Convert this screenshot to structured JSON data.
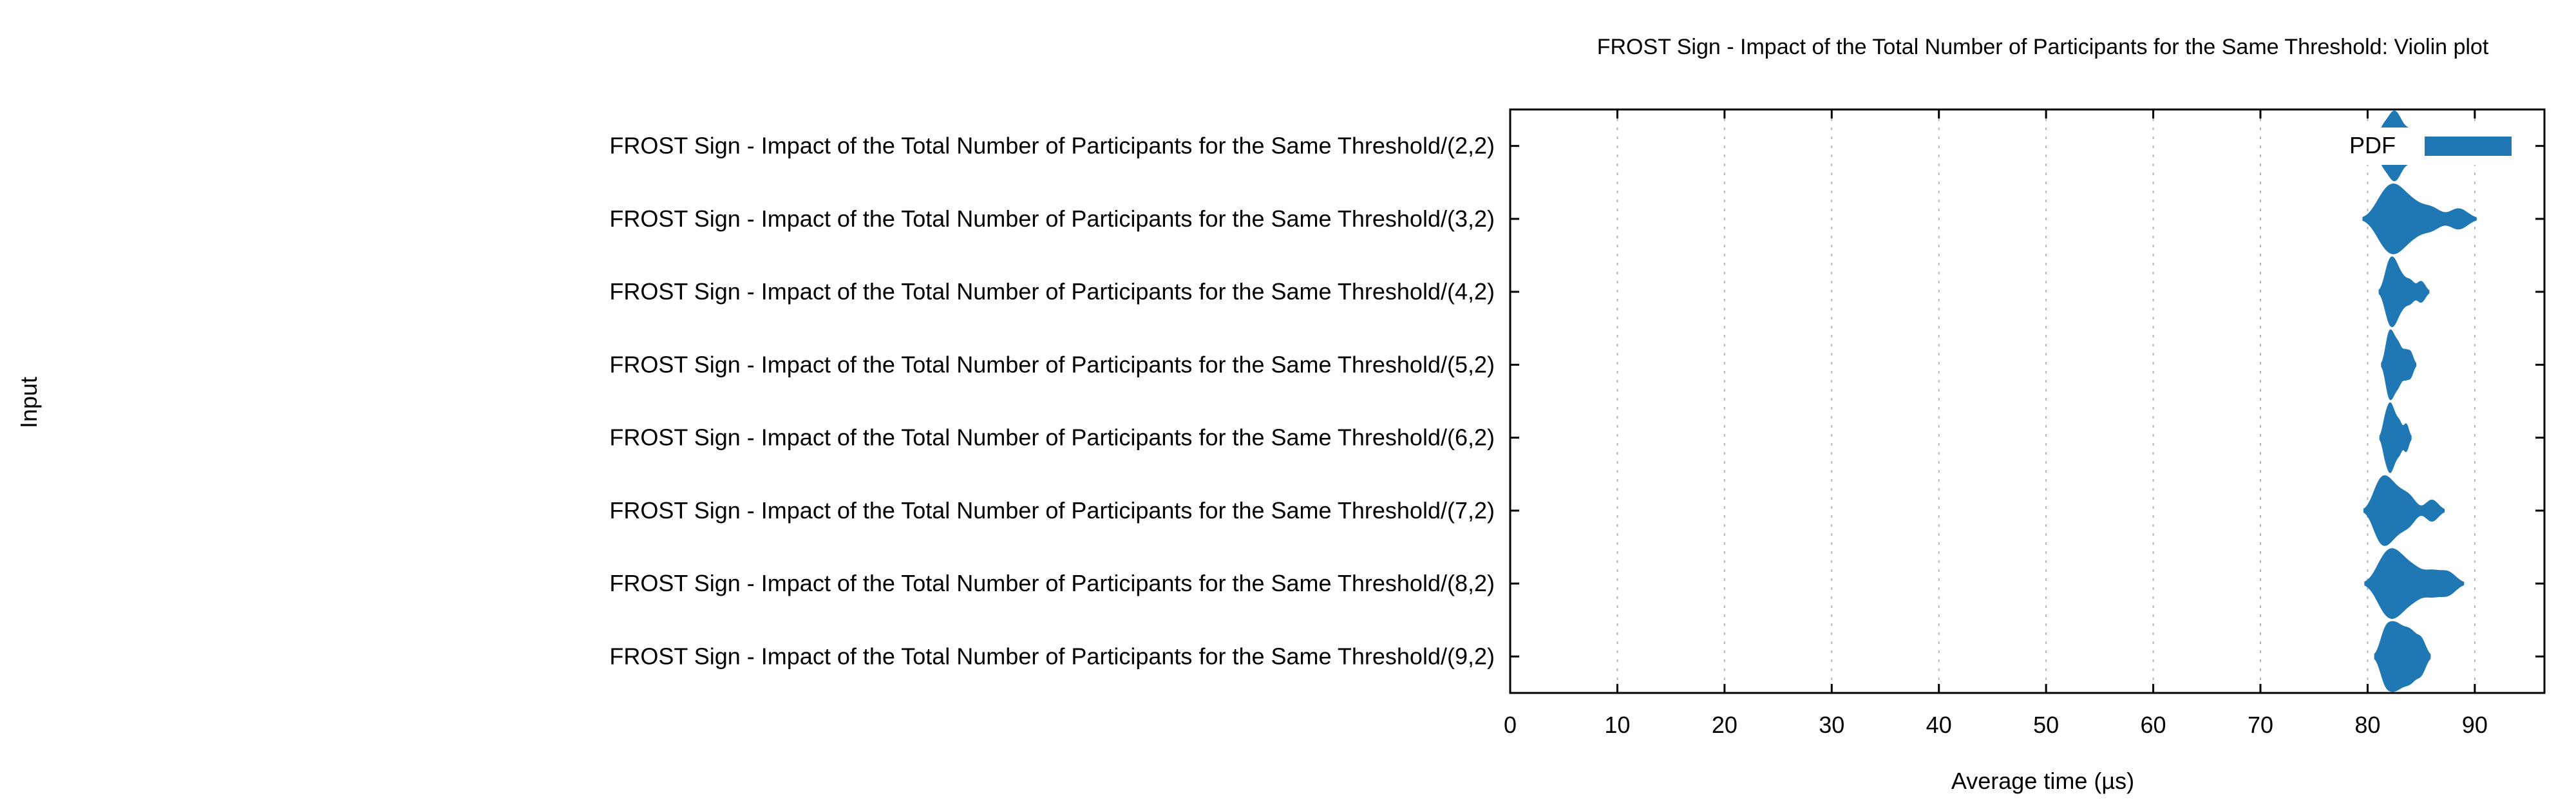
{
  "chart_data": {
    "type": "violin",
    "title": "FROST Sign - Impact of the Total Number of Participants for the Same Threshold: Violin plot",
    "xlabel": "Average time (µs)",
    "ylabel": "Input",
    "xlim": [
      0,
      96.5
    ],
    "x_ticks": [
      "0",
      "10",
      "20",
      "30",
      "40",
      "50",
      "60",
      "70",
      "80",
      "90"
    ],
    "grid": "vertical dotted",
    "legend_position": "top-right",
    "legend": [
      "PDF"
    ],
    "color": "#1f78b4",
    "categories": [
      "FROST Sign - Impact of the Total Number of Participants for the Same Threshold/(2,2)",
      "FROST Sign - Impact of the Total Number of Participants for the Same Threshold/(3,2)",
      "FROST Sign - Impact of the Total Number of Participants for the Same Threshold/(4,2)",
      "FROST Sign - Impact of the Total Number of Participants for the Same Threshold/(5,2)",
      "FROST Sign - Impact of the Total Number of Participants for the Same Threshold/(6,2)",
      "FROST Sign - Impact of the Total Number of Participants for the Same Threshold/(7,2)",
      "FROST Sign - Impact of the Total Number of Participants for the Same Threshold/(8,2)",
      "FROST Sign - Impact of the Total Number of Participants for the Same Threshold/(9,2)"
    ],
    "series": [
      {
        "values": [
          81.3,
          81.8,
          82.2,
          82.5,
          82.8,
          83.2,
          83.8,
          84.5
        ]
      },
      {
        "values": [
          81.2,
          81.8,
          82.4,
          82.8,
          83.5,
          84.5,
          86.0,
          88.5
        ]
      },
      {
        "values": [
          81.8,
          82.0,
          82.3,
          82.5,
          82.8,
          83.3,
          84.0,
          85.0
        ]
      },
      {
        "values": [
          81.8,
          82.0,
          82.2,
          82.4,
          82.7,
          83.0,
          83.5,
          84.0
        ]
      },
      {
        "values": [
          81.6,
          81.9,
          82.1,
          82.3,
          82.6,
          83.0,
          83.6
        ]
      },
      {
        "values": [
          80.8,
          81.2,
          81.6,
          82.0,
          82.5,
          83.2,
          84.0,
          86.0
        ]
      },
      {
        "values": [
          81.2,
          81.8,
          82.3,
          82.8,
          83.5,
          84.5,
          86.0,
          87.5
        ]
      },
      {
        "values": [
          81.5,
          82.0,
          82.5,
          83.0,
          83.6,
          84.2,
          85.0
        ]
      }
    ]
  }
}
